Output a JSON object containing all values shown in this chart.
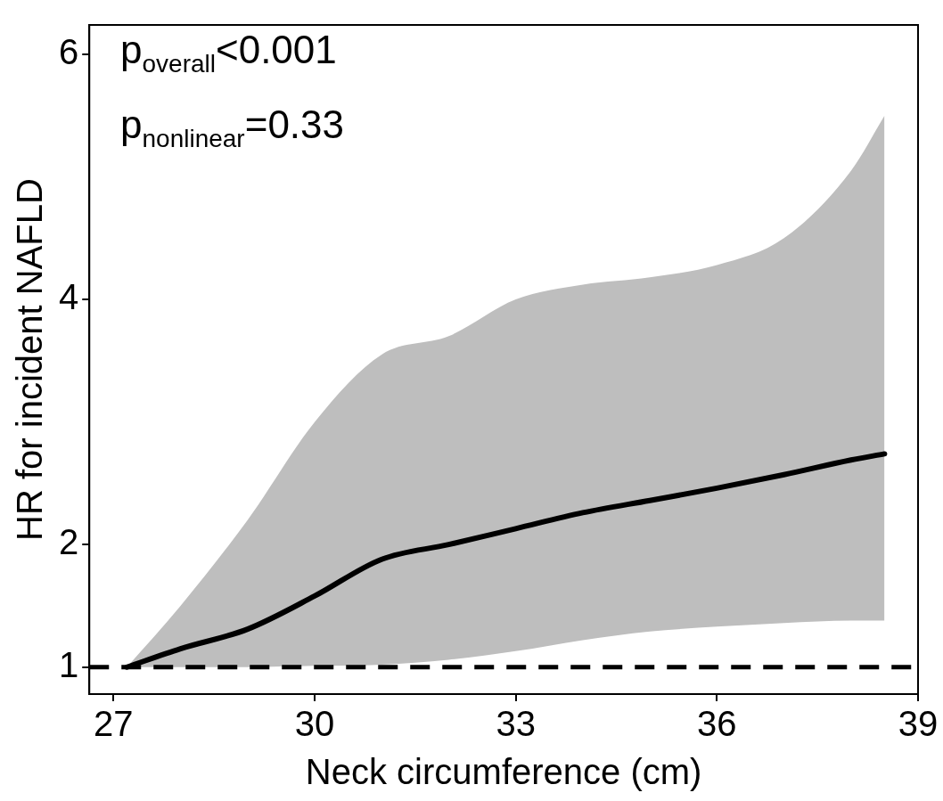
{
  "chart_data": {
    "type": "line",
    "xlabel": "Neck circumference (cm)",
    "ylabel": "HR for incident NAFLD",
    "x": [
      27.2,
      28,
      29,
      30,
      31,
      32,
      33,
      34,
      35,
      36,
      37,
      38,
      38.5
    ],
    "series": [
      {
        "color": "#000000",
        "values": [
          1.0,
          1.15,
          1.31,
          1.58,
          1.88,
          2.0,
          2.13,
          2.26,
          2.36,
          2.46,
          2.57,
          2.69,
          2.74
        ],
        "lower": [
          1.0,
          1.0,
          1.0,
          1.01,
          1.02,
          1.06,
          1.13,
          1.22,
          1.29,
          1.33,
          1.36,
          1.38,
          1.38
        ],
        "upper": [
          1.0,
          1.5,
          2.2,
          3.0,
          3.55,
          3.7,
          4.0,
          4.12,
          4.18,
          4.28,
          4.5,
          5.05,
          5.5
        ]
      }
    ],
    "xlim": [
      26.64,
      39.0
    ],
    "xticks": [
      27,
      30,
      33,
      36,
      39
    ],
    "ylim": [
      0.78,
      6.24
    ],
    "yticks": [
      1,
      2,
      4,
      6
    ],
    "ref_lines": [
      {
        "axis": "y",
        "value": 1,
        "color": "#000000",
        "line_style": "dashed"
      }
    ],
    "annotations": [
      "p$_{overall}$<0.001",
      "p$_{nonlinear}$=0.33"
    ],
    "grid": false,
    "legend": false,
    "marker": "none",
    "line_style": "solid"
  }
}
